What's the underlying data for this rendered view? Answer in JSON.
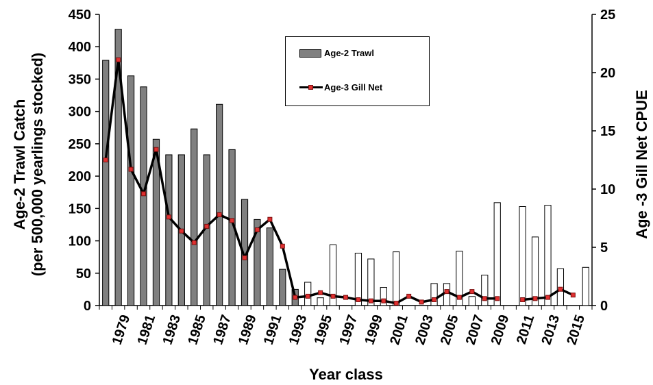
{
  "chart_data": {
    "type": "bar",
    "x": [
      1978,
      1979,
      1980,
      1981,
      1982,
      1983,
      1984,
      1985,
      1986,
      1987,
      1988,
      1989,
      1990,
      1991,
      1992,
      1993,
      1994,
      1995,
      1996,
      1997,
      1998,
      1999,
      2000,
      2001,
      2002,
      2003,
      2004,
      2005,
      2006,
      2007,
      2008,
      2009,
      2010,
      2011,
      2012,
      2013,
      2014,
      2015,
      2016
    ],
    "x_tick_labels": [
      "1979",
      "1981",
      "1983",
      "1985",
      "1987",
      "1989",
      "1991",
      "1993",
      "1995",
      "1997",
      "1999",
      "2001",
      "2003",
      "2005",
      "2007",
      "2009",
      "2011",
      "2013",
      "2015"
    ],
    "y_ticks": [
      "0",
      "50",
      "100",
      "150",
      "200",
      "250",
      "300",
      "350",
      "400",
      "450"
    ],
    "y2_ticks": [
      "0",
      "5",
      "10",
      "15",
      "20",
      "25"
    ],
    "series": [
      {
        "name": "Age-2 Trawl",
        "type": "bar",
        "axis": "left",
        "values": [
          379,
          427,
          355,
          338,
          257,
          233,
          233,
          273,
          233,
          311,
          241,
          164,
          133,
          120,
          56,
          25,
          36,
          12,
          94,
          0,
          81,
          72,
          28,
          83,
          0,
          0,
          34,
          34,
          84,
          14,
          47,
          159,
          0,
          153,
          106,
          155,
          57,
          0,
          59
        ],
        "filled_through": 1993
      },
      {
        "name": "Age-3 Gill Net",
        "type": "line",
        "axis": "right",
        "values": [
          12.5,
          21.1,
          11.7,
          9.6,
          13.4,
          7.6,
          6.4,
          5.4,
          6.8,
          7.8,
          7.3,
          4.1,
          6.5,
          7.4,
          5.1,
          0.7,
          0.8,
          1.1,
          0.8,
          0.7,
          0.5,
          0.4,
          0.4,
          0.2,
          0.8,
          0.3,
          0.5,
          1.2,
          0.7,
          1.2,
          0.6,
          0.6,
          null,
          0.5,
          0.6,
          0.7,
          1.4,
          0.9,
          null
        ]
      }
    ],
    "xlabel": "Year class",
    "ylabel": "Age-2 Trawl Catch\n(per 500,000 yearlings stocked)",
    "y2label": "Age -3 Gill Net CPUE",
    "ylim": [
      0,
      450
    ],
    "y2lim": [
      0,
      25
    ],
    "grid": false,
    "legend_position": "top-center",
    "colors": {
      "filled_bar": "#808080",
      "open_bar": "#ffffff",
      "line": "#000000",
      "marker": "#e03030"
    }
  }
}
